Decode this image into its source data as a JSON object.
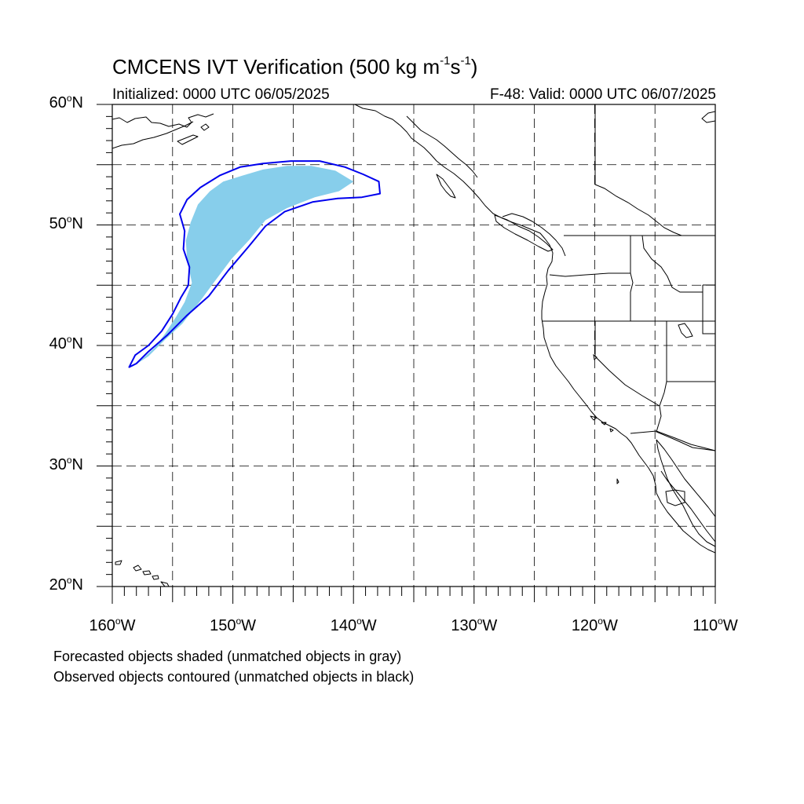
{
  "title": {
    "prefix": "CMCENS IVT Verification (500 kg m",
    "exp1": "-1",
    "mid": "s",
    "exp2": "-1",
    "suffix": ")"
  },
  "subtitle_left": "Initialized: 0000 UTC 06/05/2025",
  "subtitle_right": "F-48: Valid: 0000 UTC 06/07/2025",
  "lat_labels": [
    {
      "num": "60",
      "hemi": "N",
      "value": 60
    },
    {
      "num": "50",
      "hemi": "N",
      "value": 50
    },
    {
      "num": "40",
      "hemi": "N",
      "value": 40
    },
    {
      "num": "30",
      "hemi": "N",
      "value": 30
    },
    {
      "num": "20",
      "hemi": "N",
      "value": 20
    }
  ],
  "lon_labels": [
    {
      "num": "160",
      "hemi": "W",
      "value": -160
    },
    {
      "num": "150",
      "hemi": "W",
      "value": -150
    },
    {
      "num": "140",
      "hemi": "W",
      "value": -140
    },
    {
      "num": "130",
      "hemi": "W",
      "value": -130
    },
    {
      "num": "120",
      "hemi": "W",
      "value": -120
    },
    {
      "num": "110",
      "hemi": "W",
      "value": -110
    }
  ],
  "degree_symbol": "o",
  "footnotes": [
    "Forecasted objects shaded (unmatched objects in gray)",
    "Observed objects contoured (unmatched objects in black)"
  ],
  "colors": {
    "forecast_fill": "#87ceeb",
    "observed_contour": "#0000ee",
    "grid": "#000000",
    "coast": "#000000"
  },
  "extent": {
    "lon_min": -160,
    "lon_max": -110,
    "lat_min": 20,
    "lat_max": 60
  },
  "gridlines_dashed": true,
  "forecast_object": {
    "type": "shaded",
    "matched": true,
    "lonlat": [
      [
        -158.4,
        38.2
      ],
      [
        -157.6,
        38.8
      ],
      [
        -156.5,
        39.8
      ],
      [
        -155.6,
        41.0
      ],
      [
        -154.7,
        42.4
      ],
      [
        -154.0,
        43.6
      ],
      [
        -153.4,
        45.2
      ],
      [
        -153.8,
        47.2
      ],
      [
        -153.9,
        48.7
      ],
      [
        -153.5,
        50.2
      ],
      [
        -152.9,
        51.7
      ],
      [
        -151.9,
        52.8
      ],
      [
        -150.8,
        53.6
      ],
      [
        -149.2,
        54.1
      ],
      [
        -147.5,
        54.6
      ],
      [
        -145.5,
        54.9
      ],
      [
        -143.5,
        54.9
      ],
      [
        -141.5,
        54.5
      ],
      [
        -140.0,
        53.6
      ],
      [
        -141.2,
        52.8
      ],
      [
        -143.2,
        52.3
      ],
      [
        -145.5,
        51.4
      ],
      [
        -147.3,
        50.4
      ],
      [
        -148.6,
        48.8
      ],
      [
        -150.1,
        47.2
      ],
      [
        -151.6,
        45.2
      ],
      [
        -152.7,
        43.7
      ],
      [
        -154.2,
        41.8
      ],
      [
        -155.6,
        40.5
      ],
      [
        -157.0,
        39.1
      ],
      [
        -158.4,
        38.2
      ]
    ]
  },
  "observed_object": {
    "type": "contour",
    "matched": true,
    "lonlat": [
      [
        -158.6,
        38.2
      ],
      [
        -158.1,
        39.2
      ],
      [
        -157.0,
        40.0
      ],
      [
        -155.9,
        41.2
      ],
      [
        -155.0,
        42.6
      ],
      [
        -154.3,
        44.0
      ],
      [
        -153.7,
        45.0
      ],
      [
        -153.6,
        46.5
      ],
      [
        -154.1,
        48.0
      ],
      [
        -154.0,
        49.5
      ],
      [
        -154.4,
        50.9
      ],
      [
        -153.8,
        52.1
      ],
      [
        -152.7,
        53.1
      ],
      [
        -151.1,
        54.1
      ],
      [
        -149.4,
        54.8
      ],
      [
        -147.5,
        55.1
      ],
      [
        -145.2,
        55.3
      ],
      [
        -142.8,
        55.3
      ],
      [
        -140.7,
        54.8
      ],
      [
        -139.2,
        54.2
      ],
      [
        -137.9,
        53.6
      ],
      [
        -137.8,
        52.6
      ],
      [
        -139.3,
        52.3
      ],
      [
        -141.3,
        52.2
      ],
      [
        -143.4,
        51.9
      ],
      [
        -145.7,
        51.1
      ],
      [
        -147.3,
        49.9
      ],
      [
        -148.7,
        48.2
      ],
      [
        -150.4,
        46.2
      ],
      [
        -152.0,
        44.1
      ],
      [
        -153.8,
        42.5
      ],
      [
        -155.4,
        40.9
      ],
      [
        -157.0,
        39.5
      ],
      [
        -158.0,
        38.5
      ],
      [
        -158.6,
        38.2
      ]
    ]
  }
}
